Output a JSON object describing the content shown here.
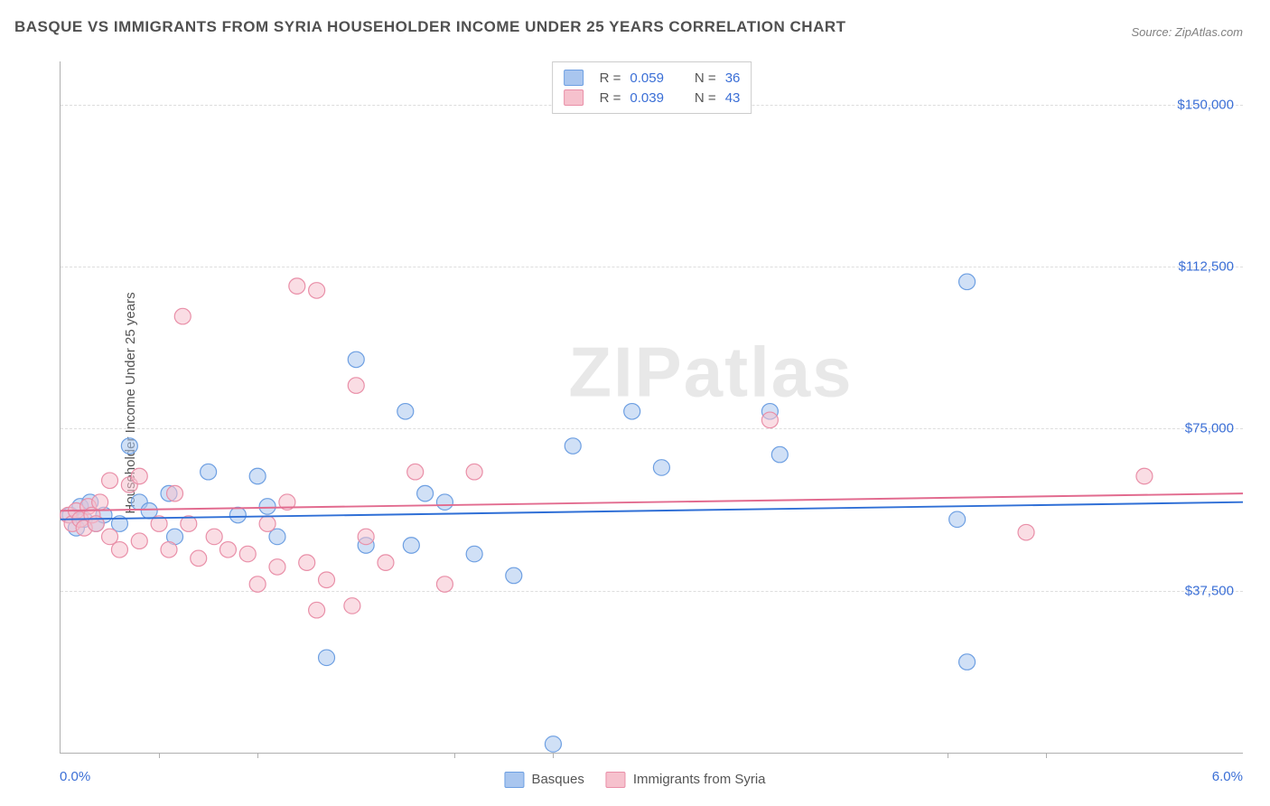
{
  "title": "BASQUE VS IMMIGRANTS FROM SYRIA HOUSEHOLDER INCOME UNDER 25 YEARS CORRELATION CHART",
  "source": "Source: ZipAtlas.com",
  "watermark": "ZIPatlas",
  "y_axis_label": "Householder Income Under 25 years",
  "chart": {
    "type": "scatter",
    "xlim": [
      0.0,
      6.0
    ],
    "ylim": [
      0,
      160000
    ],
    "x_min_label": "0.0%",
    "x_max_label": "6.0%",
    "y_ticks": [
      37500,
      75000,
      112500,
      150000
    ],
    "y_tick_labels": [
      "$37,500",
      "$75,000",
      "$112,500",
      "$150,000"
    ],
    "x_tick_positions": [
      0.5,
      1.0,
      2.0,
      2.5,
      4.5,
      5.0
    ],
    "background_color": "#ffffff",
    "grid_color": "#dddddd",
    "axis_color": "#b0b0b0",
    "tick_label_color": "#3b6fd6",
    "marker_radius": 9,
    "marker_opacity": 0.55,
    "line_width": 2,
    "series": [
      {
        "name": "Basques",
        "color_fill": "#a9c6ef",
        "color_stroke": "#6d9fe2",
        "line_color": "#2f6fd6",
        "R": "0.059",
        "N": "36",
        "trend": {
          "y_at_xmin": 54000,
          "y_at_xmax": 58000
        },
        "points": [
          {
            "x": 0.05,
            "y": 55000
          },
          {
            "x": 0.08,
            "y": 52000
          },
          {
            "x": 0.1,
            "y": 57000
          },
          {
            "x": 0.12,
            "y": 54000
          },
          {
            "x": 0.15,
            "y": 58000
          },
          {
            "x": 0.18,
            "y": 53000
          },
          {
            "x": 0.35,
            "y": 71000
          },
          {
            "x": 0.4,
            "y": 58000
          },
          {
            "x": 0.55,
            "y": 60000
          },
          {
            "x": 0.58,
            "y": 50000
          },
          {
            "x": 0.75,
            "y": 65000
          },
          {
            "x": 1.0,
            "y": 64000
          },
          {
            "x": 1.05,
            "y": 57000
          },
          {
            "x": 1.1,
            "y": 50000
          },
          {
            "x": 1.35,
            "y": 22000
          },
          {
            "x": 1.5,
            "y": 91000
          },
          {
            "x": 1.55,
            "y": 48000
          },
          {
            "x": 1.75,
            "y": 79000
          },
          {
            "x": 1.78,
            "y": 48000
          },
          {
            "x": 1.85,
            "y": 60000
          },
          {
            "x": 2.1,
            "y": 46000
          },
          {
            "x": 2.3,
            "y": 41000
          },
          {
            "x": 2.5,
            "y": 2000
          },
          {
            "x": 2.6,
            "y": 71000
          },
          {
            "x": 2.9,
            "y": 79000
          },
          {
            "x": 3.05,
            "y": 66000
          },
          {
            "x": 3.6,
            "y": 79000
          },
          {
            "x": 3.65,
            "y": 69000
          },
          {
            "x": 4.6,
            "y": 109000
          },
          {
            "x": 4.55,
            "y": 54000
          },
          {
            "x": 4.6,
            "y": 21000
          },
          {
            "x": 0.22,
            "y": 55000
          },
          {
            "x": 0.3,
            "y": 53000
          },
          {
            "x": 0.45,
            "y": 56000
          },
          {
            "x": 0.9,
            "y": 55000
          },
          {
            "x": 1.95,
            "y": 58000
          }
        ]
      },
      {
        "name": "Immigrants from Syria",
        "color_fill": "#f6c1cd",
        "color_stroke": "#e98fa8",
        "line_color": "#e26b8f",
        "R": "0.039",
        "N": "43",
        "trend": {
          "y_at_xmin": 56000,
          "y_at_xmax": 60000
        },
        "points": [
          {
            "x": 0.04,
            "y": 55000
          },
          {
            "x": 0.06,
            "y": 53000
          },
          {
            "x": 0.08,
            "y": 56000
          },
          {
            "x": 0.1,
            "y": 54000
          },
          {
            "x": 0.12,
            "y": 52000
          },
          {
            "x": 0.14,
            "y": 57000
          },
          {
            "x": 0.16,
            "y": 55000
          },
          {
            "x": 0.18,
            "y": 53000
          },
          {
            "x": 0.2,
            "y": 58000
          },
          {
            "x": 0.25,
            "y": 50000
          },
          {
            "x": 0.25,
            "y": 63000
          },
          {
            "x": 0.3,
            "y": 47000
          },
          {
            "x": 0.35,
            "y": 62000
          },
          {
            "x": 0.4,
            "y": 49000
          },
          {
            "x": 0.4,
            "y": 64000
          },
          {
            "x": 0.5,
            "y": 53000
          },
          {
            "x": 0.55,
            "y": 47000
          },
          {
            "x": 0.58,
            "y": 60000
          },
          {
            "x": 0.62,
            "y": 101000
          },
          {
            "x": 0.65,
            "y": 53000
          },
          {
            "x": 0.7,
            "y": 45000
          },
          {
            "x": 0.78,
            "y": 50000
          },
          {
            "x": 0.85,
            "y": 47000
          },
          {
            "x": 0.95,
            "y": 46000
          },
          {
            "x": 1.0,
            "y": 39000
          },
          {
            "x": 1.05,
            "y": 53000
          },
          {
            "x": 1.1,
            "y": 43000
          },
          {
            "x": 1.15,
            "y": 58000
          },
          {
            "x": 1.2,
            "y": 108000
          },
          {
            "x": 1.25,
            "y": 44000
          },
          {
            "x": 1.3,
            "y": 33000
          },
          {
            "x": 1.3,
            "y": 107000
          },
          {
            "x": 1.35,
            "y": 40000
          },
          {
            "x": 1.48,
            "y": 34000
          },
          {
            "x": 1.5,
            "y": 85000
          },
          {
            "x": 1.55,
            "y": 50000
          },
          {
            "x": 1.65,
            "y": 44000
          },
          {
            "x": 1.8,
            "y": 65000
          },
          {
            "x": 1.95,
            "y": 39000
          },
          {
            "x": 2.1,
            "y": 65000
          },
          {
            "x": 3.6,
            "y": 77000
          },
          {
            "x": 4.9,
            "y": 51000
          },
          {
            "x": 5.5,
            "y": 64000
          }
        ]
      }
    ]
  },
  "top_legend": {
    "R_label": "R =",
    "N_label": "N ="
  },
  "bottom_legend": {
    "items": [
      {
        "label": "Basques",
        "fill": "#a9c6ef",
        "stroke": "#6d9fe2"
      },
      {
        "label": "Immigrants from Syria",
        "fill": "#f6c1cd",
        "stroke": "#e98fa8"
      }
    ]
  }
}
